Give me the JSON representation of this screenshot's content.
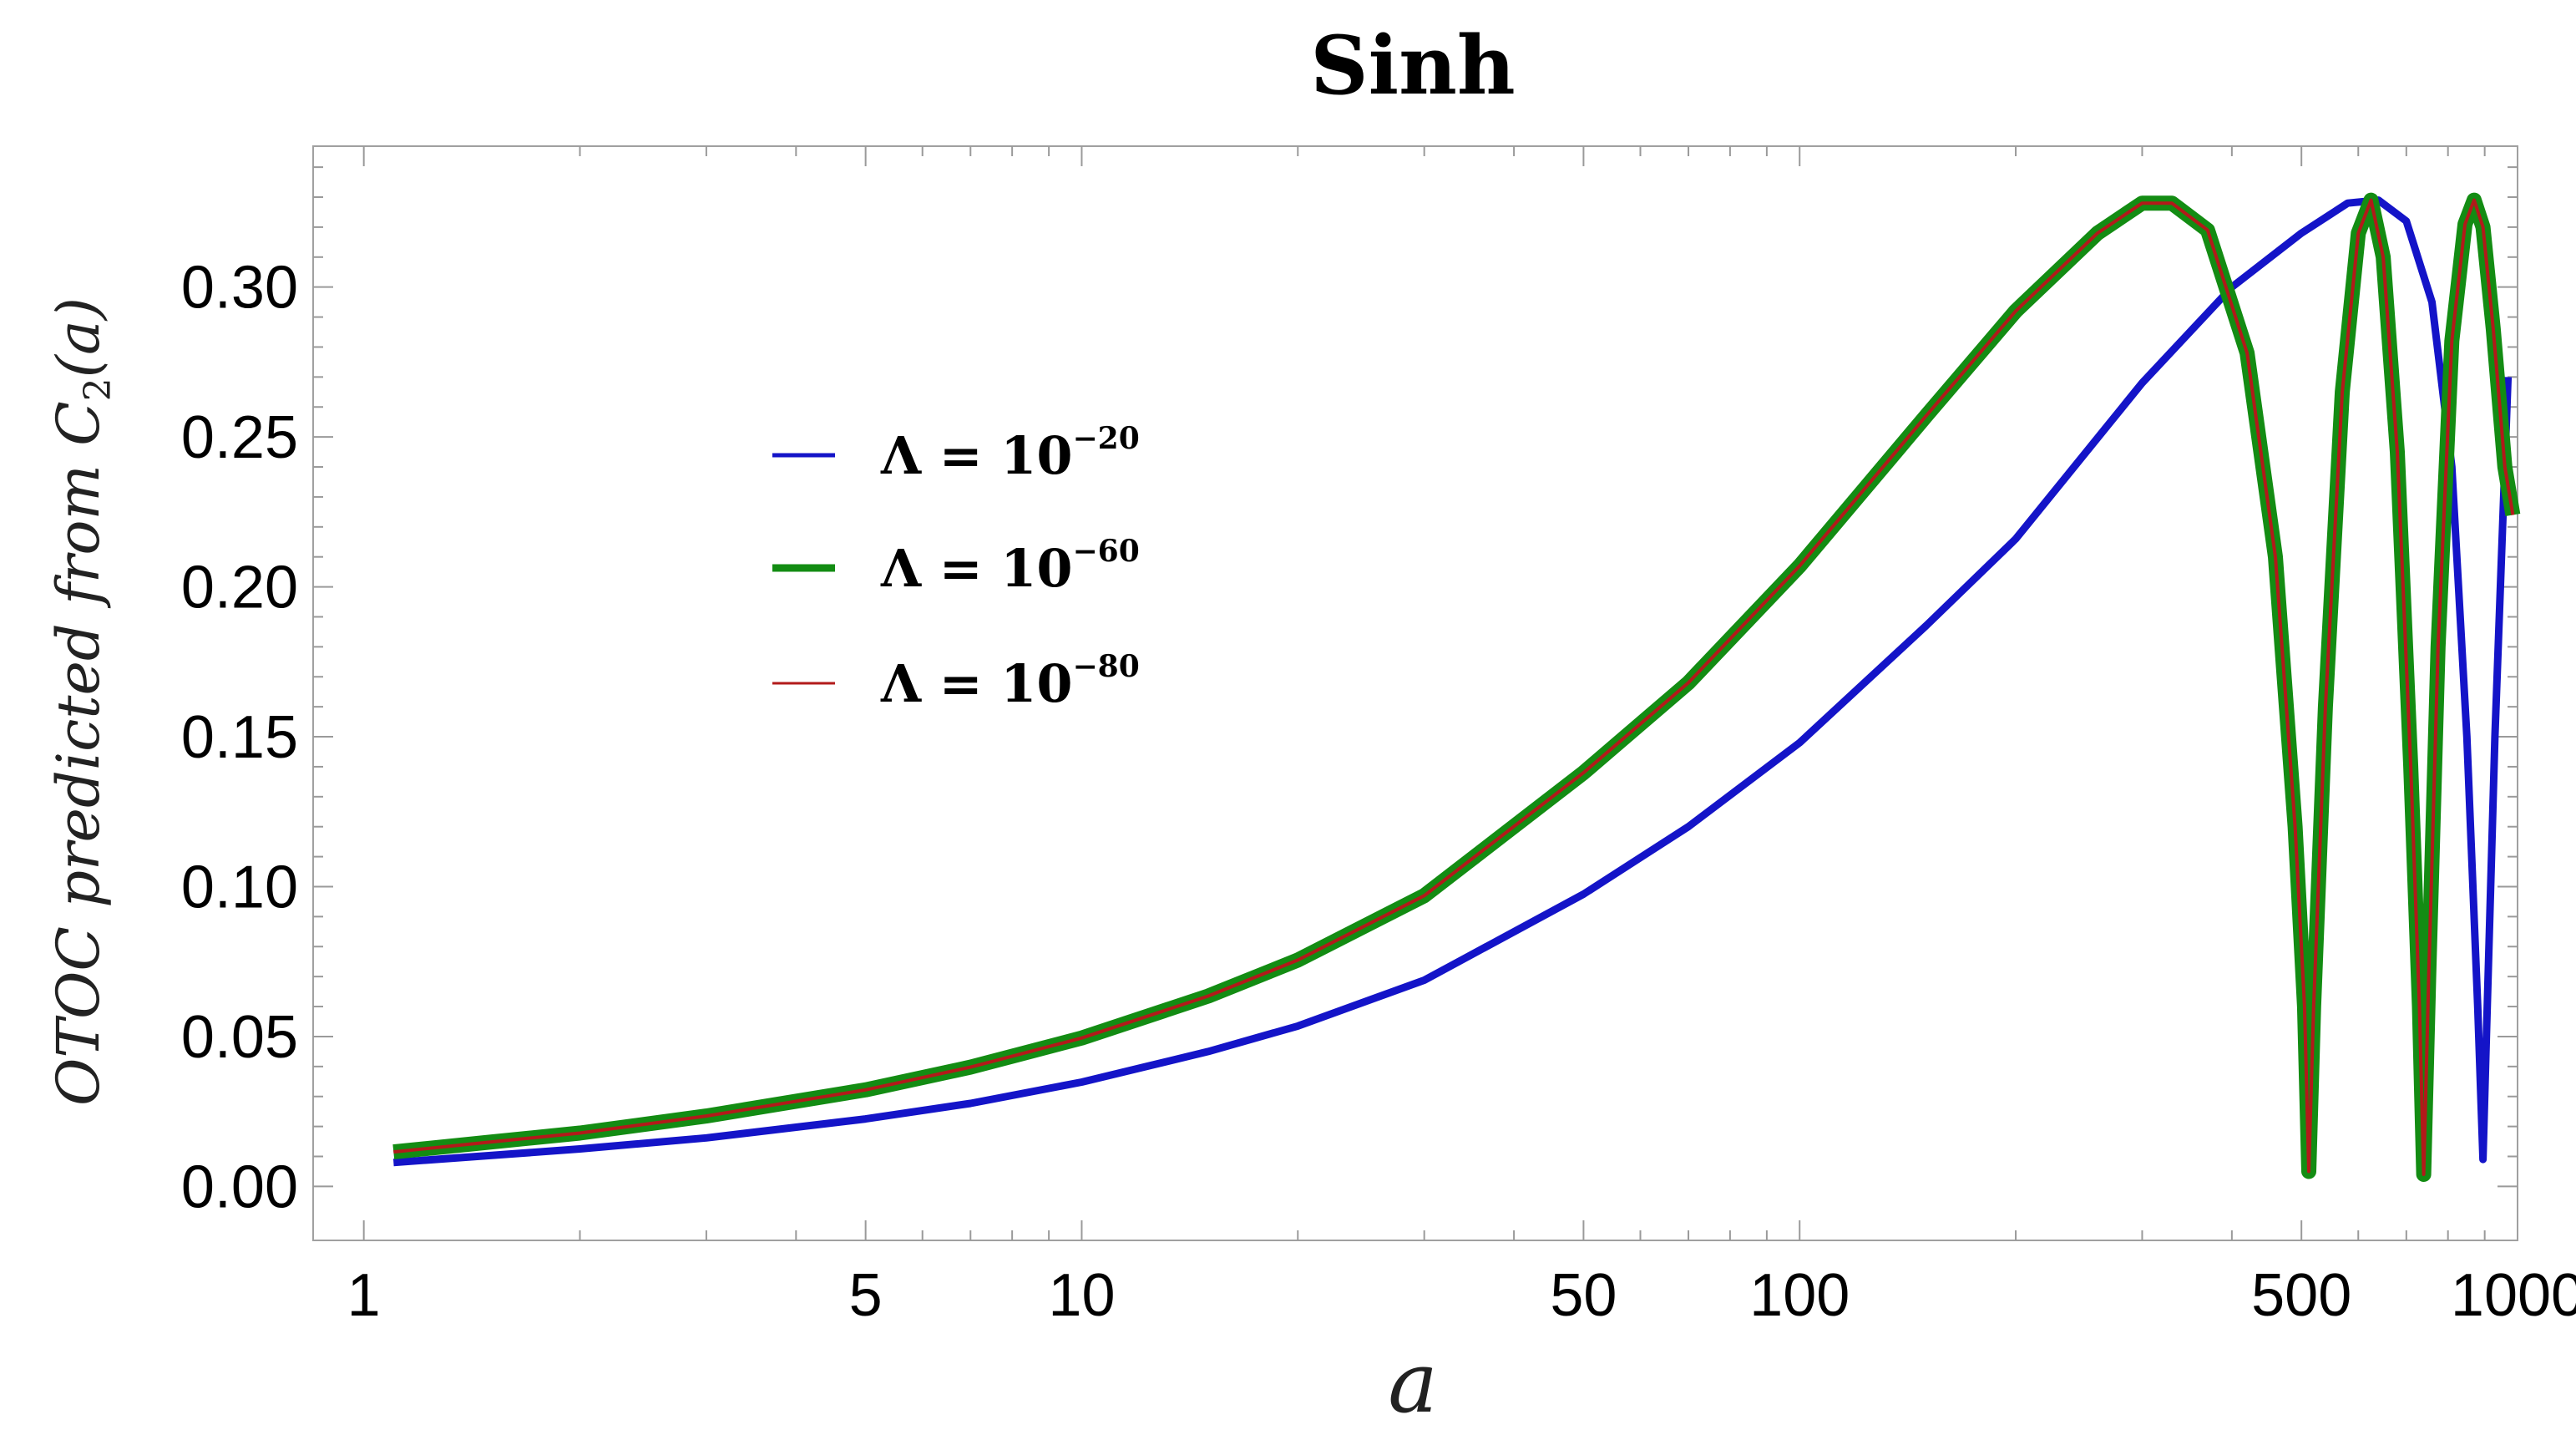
{
  "chart_data": {
    "type": "line",
    "title": "Sinh",
    "xlabel": "a",
    "ylabel": {
      "main": "OTOC predicted from C",
      "sub": "2",
      "tail": "(a)"
    },
    "x_scale": "log",
    "xlim": [
      0.85,
      1000
    ],
    "ylim": [
      -0.018,
      0.347
    ],
    "x_ticks": [
      {
        "value": 1,
        "label": "1"
      },
      {
        "value": 5,
        "label": "5"
      },
      {
        "value": 10,
        "label": "10"
      },
      {
        "value": 50,
        "label": "50"
      },
      {
        "value": 100,
        "label": "100"
      },
      {
        "value": 500,
        "label": "500"
      },
      {
        "value": 1000,
        "label": "1000"
      }
    ],
    "y_ticks": [
      {
        "value": 0.0,
        "label": "0.00"
      },
      {
        "value": 0.05,
        "label": "0.05"
      },
      {
        "value": 0.1,
        "label": "0.10"
      },
      {
        "value": 0.15,
        "label": "0.15"
      },
      {
        "value": 0.2,
        "label": "0.20"
      },
      {
        "value": 0.25,
        "label": "0.25"
      },
      {
        "value": 0.3,
        "label": "0.30"
      }
    ],
    "legend_position": "upper-left",
    "grid": false,
    "series": [
      {
        "name": "Λ = 10",
        "exponent": "−20",
        "color": "#1414c8",
        "line_width": 9,
        "legend_line_width": 5,
        "points": [
          [
            1.1,
            0.008
          ],
          [
            1.5,
            0.0103
          ],
          [
            2,
            0.0125
          ],
          [
            3,
            0.0162
          ],
          [
            5,
            0.0225
          ],
          [
            7,
            0.0277
          ],
          [
            10,
            0.0348
          ],
          [
            15,
            0.045
          ],
          [
            20,
            0.0535
          ],
          [
            30,
            0.0688
          ],
          [
            50,
            0.0975
          ],
          [
            70,
            0.12
          ],
          [
            100,
            0.148
          ],
          [
            150,
            0.187
          ],
          [
            200,
            0.216
          ],
          [
            300,
            0.268
          ],
          [
            400,
            0.3
          ],
          [
            500,
            0.318
          ],
          [
            580,
            0.328
          ],
          [
            640,
            0.329
          ],
          [
            700,
            0.322
          ],
          [
            760,
            0.295
          ],
          [
            810,
            0.24
          ],
          [
            850,
            0.15
          ],
          [
            880,
            0.06
          ],
          [
            895,
            0.009
          ],
          [
            905,
            0.05
          ],
          [
            930,
            0.15
          ],
          [
            970,
            0.27
          ]
        ]
      },
      {
        "name": "Λ = 10",
        "exponent": "−60",
        "color": "#138c13",
        "line_width": 18,
        "legend_line_width": 9,
        "points": [
          [
            1.1,
            0.0115
          ],
          [
            1.5,
            0.0148
          ],
          [
            2,
            0.0178
          ],
          [
            3,
            0.0235
          ],
          [
            5,
            0.0322
          ],
          [
            7,
            0.0398
          ],
          [
            10,
            0.0495
          ],
          [
            15,
            0.0635
          ],
          [
            20,
            0.0755
          ],
          [
            30,
            0.097
          ],
          [
            50,
            0.138
          ],
          [
            70,
            0.168
          ],
          [
            100,
            0.207
          ],
          [
            150,
            0.257
          ],
          [
            200,
            0.292
          ],
          [
            260,
            0.318
          ],
          [
            300,
            0.328
          ],
          [
            330,
            0.328
          ],
          [
            370,
            0.319
          ],
          [
            420,
            0.278
          ],
          [
            460,
            0.21
          ],
          [
            490,
            0.12
          ],
          [
            505,
            0.06
          ],
          [
            512,
            0.005
          ],
          [
            520,
            0.06
          ],
          [
            540,
            0.16
          ],
          [
            570,
            0.265
          ],
          [
            600,
            0.318
          ],
          [
            625,
            0.329
          ],
          [
            650,
            0.31
          ],
          [
            680,
            0.245
          ],
          [
            710,
            0.14
          ],
          [
            730,
            0.06
          ],
          [
            740,
            0.004
          ],
          [
            752,
            0.07
          ],
          [
            775,
            0.18
          ],
          [
            810,
            0.282
          ],
          [
            845,
            0.321
          ],
          [
            870,
            0.329
          ],
          [
            895,
            0.32
          ],
          [
            925,
            0.286
          ],
          [
            960,
            0.24
          ],
          [
            985,
            0.224
          ]
        ]
      },
      {
        "name": "Λ = 10",
        "exponent": "−80",
        "color": "#b21a1a",
        "line_width": 4,
        "legend_line_width": 3,
        "points": [
          [
            1.1,
            0.0115
          ],
          [
            1.5,
            0.0148
          ],
          [
            2,
            0.0178
          ],
          [
            3,
            0.0235
          ],
          [
            5,
            0.0322
          ],
          [
            7,
            0.0398
          ],
          [
            10,
            0.0495
          ],
          [
            15,
            0.0635
          ],
          [
            20,
            0.0755
          ],
          [
            30,
            0.097
          ],
          [
            50,
            0.138
          ],
          [
            70,
            0.168
          ],
          [
            100,
            0.207
          ],
          [
            150,
            0.257
          ],
          [
            200,
            0.292
          ],
          [
            260,
            0.318
          ],
          [
            300,
            0.328
          ],
          [
            330,
            0.328
          ],
          [
            370,
            0.319
          ],
          [
            420,
            0.278
          ],
          [
            460,
            0.21
          ],
          [
            490,
            0.12
          ],
          [
            505,
            0.06
          ],
          [
            512,
            0.005
          ],
          [
            520,
            0.06
          ],
          [
            540,
            0.16
          ],
          [
            570,
            0.265
          ],
          [
            600,
            0.318
          ],
          [
            625,
            0.329
          ],
          [
            650,
            0.31
          ],
          [
            680,
            0.245
          ],
          [
            710,
            0.14
          ],
          [
            730,
            0.06
          ],
          [
            740,
            0.004
          ],
          [
            752,
            0.07
          ],
          [
            775,
            0.18
          ],
          [
            810,
            0.282
          ],
          [
            845,
            0.321
          ],
          [
            870,
            0.329
          ],
          [
            895,
            0.32
          ],
          [
            925,
            0.286
          ],
          [
            960,
            0.24
          ],
          [
            985,
            0.224
          ]
        ]
      }
    ]
  }
}
